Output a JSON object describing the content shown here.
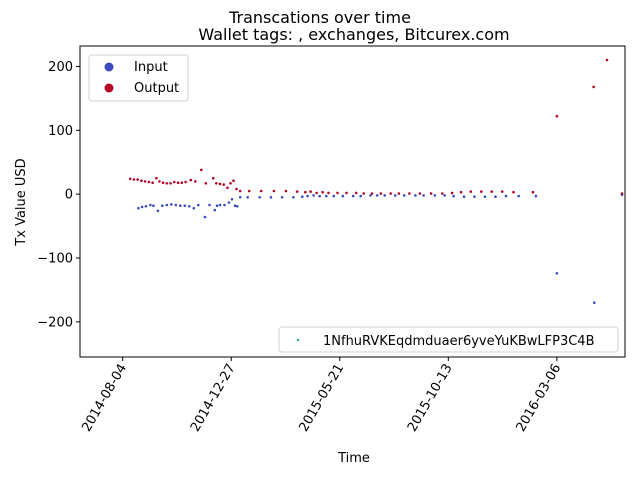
{
  "chart_data": {
    "type": "scatter",
    "title": "Transcations over time",
    "subtitle": "Wallet tags: , exchanges, Bitcurex.com",
    "xlabel": "Time",
    "ylabel": "Tx Value USD",
    "xlim": [
      "2014-06-08",
      "2016-06-05"
    ],
    "ylim": [
      -255,
      232
    ],
    "x_ticks": [
      "2014-08-04",
      "2014-12-27",
      "2015-05-21",
      "2015-10-13",
      "2016-03-06"
    ],
    "y_ticks": [
      -200,
      -100,
      0,
      100,
      200
    ],
    "legend_placement": "upper-left",
    "legend_wallet_placement": "lower-right",
    "grid": false,
    "series": [
      {
        "name": "Input",
        "color": "#3b4cc0",
        "points": [
          [
            "2014-08-25",
            -22
          ],
          [
            "2014-08-30",
            -20
          ],
          [
            "2014-09-04",
            -19
          ],
          [
            "2014-09-10",
            -17
          ],
          [
            "2014-09-14",
            -18
          ],
          [
            "2014-09-20",
            -26
          ],
          [
            "2014-09-26",
            -18
          ],
          [
            "2014-10-02",
            -17
          ],
          [
            "2014-10-08",
            -16
          ],
          [
            "2014-10-14",
            -17
          ],
          [
            "2014-10-20",
            -18
          ],
          [
            "2014-10-26",
            -18
          ],
          [
            "2014-11-01",
            -19
          ],
          [
            "2014-11-07",
            -22
          ],
          [
            "2014-11-13",
            -17
          ],
          [
            "2014-11-22",
            -36
          ],
          [
            "2014-11-28",
            -17
          ],
          [
            "2014-12-05",
            -25
          ],
          [
            "2014-12-08",
            -18
          ],
          [
            "2014-12-12",
            -17
          ],
          [
            "2014-12-18",
            -17
          ],
          [
            "2014-12-24",
            -13
          ],
          [
            "2014-12-28",
            -8
          ],
          [
            "2015-01-01",
            -18
          ],
          [
            "2015-01-04",
            -19
          ],
          [
            "2015-01-08",
            -5
          ],
          [
            "2015-01-18",
            -5
          ],
          [
            "2015-02-03",
            -5
          ],
          [
            "2015-02-18",
            -5
          ],
          [
            "2015-03-05",
            -5
          ],
          [
            "2015-03-20",
            -5
          ],
          [
            "2015-04-01",
            -4
          ],
          [
            "2015-04-08",
            -3
          ],
          [
            "2015-04-16",
            -2
          ],
          [
            "2015-04-24",
            -3
          ],
          [
            "2015-05-03",
            -3
          ],
          [
            "2015-05-13",
            -3
          ],
          [
            "2015-05-25",
            -3
          ],
          [
            "2015-06-08",
            -3
          ],
          [
            "2015-06-18",
            -3
          ],
          [
            "2015-07-01",
            -2
          ],
          [
            "2015-07-10",
            -2
          ],
          [
            "2015-07-20",
            -2
          ],
          [
            "2015-08-03",
            -2
          ],
          [
            "2015-08-15",
            -2
          ],
          [
            "2015-08-30",
            -2
          ],
          [
            "2015-09-10",
            -2
          ],
          [
            "2015-09-25",
            -2
          ],
          [
            "2015-10-08",
            -2
          ],
          [
            "2015-10-20",
            -3
          ],
          [
            "2015-11-03",
            -4
          ],
          [
            "2015-11-17",
            -4
          ],
          [
            "2015-12-01",
            -4
          ],
          [
            "2015-12-15",
            -4
          ],
          [
            "2015-12-29",
            -3
          ],
          [
            "2016-01-15",
            -3
          ],
          [
            "2016-02-07",
            -3
          ],
          [
            "2016-03-06",
            -124
          ],
          [
            "2016-04-25",
            -170
          ],
          [
            "2016-06-01",
            -1
          ]
        ]
      },
      {
        "name": "Output",
        "color": "#b40426",
        "points": [
          [
            "2014-08-14",
            24
          ],
          [
            "2014-08-19",
            23
          ],
          [
            "2014-08-24",
            23
          ],
          [
            "2014-08-29",
            21
          ],
          [
            "2014-09-03",
            20
          ],
          [
            "2014-09-08",
            19
          ],
          [
            "2014-09-13",
            18
          ],
          [
            "2014-09-18",
            25
          ],
          [
            "2014-09-22",
            20
          ],
          [
            "2014-09-27",
            18
          ],
          [
            "2014-10-02",
            17
          ],
          [
            "2014-10-07",
            17
          ],
          [
            "2014-10-12",
            19
          ],
          [
            "2014-10-17",
            18
          ],
          [
            "2014-10-22",
            18
          ],
          [
            "2014-10-27",
            19
          ],
          [
            "2014-11-03",
            22
          ],
          [
            "2014-11-09",
            20
          ],
          [
            "2014-11-17",
            38
          ],
          [
            "2014-11-23",
            17
          ],
          [
            "2014-12-03",
            25
          ],
          [
            "2014-12-07",
            17
          ],
          [
            "2014-12-12",
            16
          ],
          [
            "2014-12-17",
            15
          ],
          [
            "2014-12-22",
            10
          ],
          [
            "2014-12-26",
            17
          ],
          [
            "2014-12-30",
            21
          ],
          [
            "2015-01-03",
            8
          ],
          [
            "2015-01-08",
            5
          ],
          [
            "2015-01-20",
            5
          ],
          [
            "2015-02-05",
            5
          ],
          [
            "2015-02-22",
            5
          ],
          [
            "2015-03-10",
            5
          ],
          [
            "2015-03-25",
            4
          ],
          [
            "2015-04-05",
            3
          ],
          [
            "2015-04-12",
            4
          ],
          [
            "2015-04-20",
            2
          ],
          [
            "2015-04-28",
            3
          ],
          [
            "2015-05-06",
            2
          ],
          [
            "2015-05-18",
            2
          ],
          [
            "2015-05-30",
            2
          ],
          [
            "2015-06-12",
            2
          ],
          [
            "2015-06-22",
            1
          ],
          [
            "2015-07-03",
            1
          ],
          [
            "2015-07-15",
            1
          ],
          [
            "2015-07-28",
            1
          ],
          [
            "2015-08-08",
            1
          ],
          [
            "2015-08-22",
            1
          ],
          [
            "2015-09-05",
            1
          ],
          [
            "2015-09-20",
            1
          ],
          [
            "2015-10-05",
            1
          ],
          [
            "2015-10-18",
            2
          ],
          [
            "2015-10-30",
            3
          ],
          [
            "2015-11-12",
            4
          ],
          [
            "2015-11-26",
            4
          ],
          [
            "2015-12-10",
            4
          ],
          [
            "2015-12-24",
            4
          ],
          [
            "2016-01-08",
            3
          ],
          [
            "2016-02-03",
            3
          ],
          [
            "2016-03-06",
            122
          ],
          [
            "2016-04-24",
            168
          ],
          [
            "2016-05-12",
            210
          ],
          [
            "2016-06-01",
            1
          ]
        ]
      },
      {
        "name": "1NfhuRVKEqdmduaer6yveYuKBwLFP3C4B",
        "color": "#2a9d8f",
        "points": []
      }
    ]
  }
}
